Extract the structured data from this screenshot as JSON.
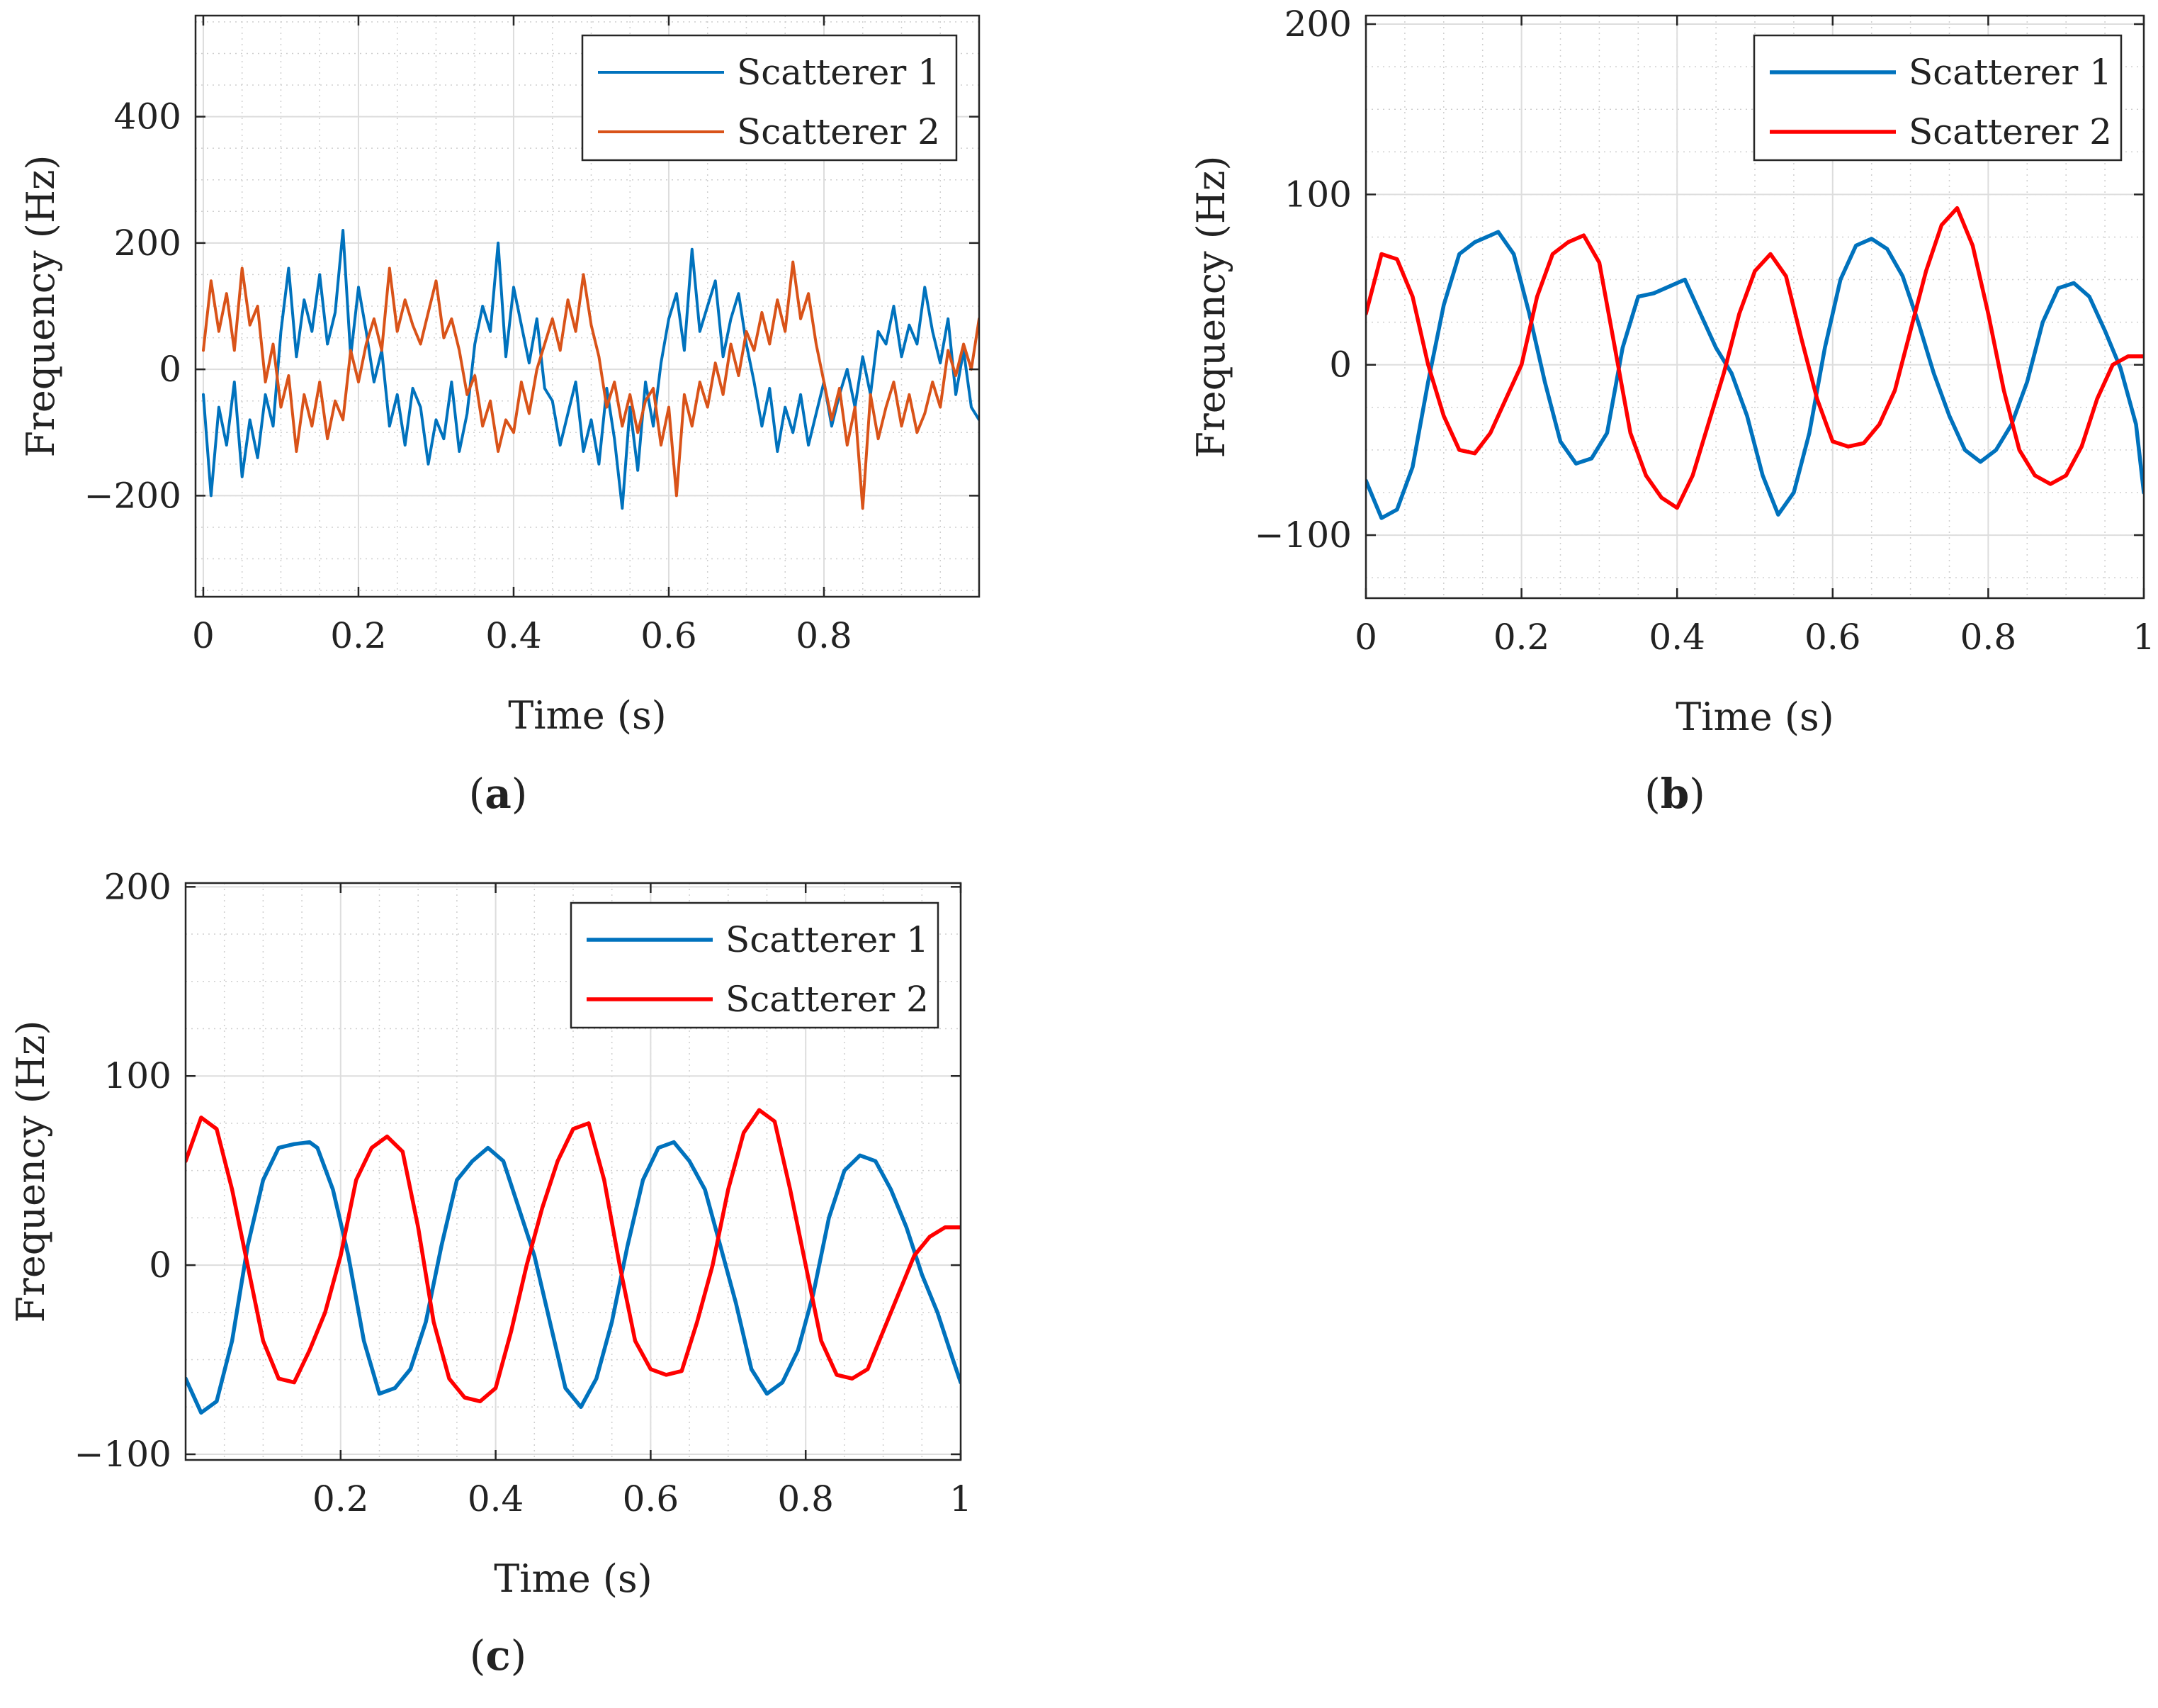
{
  "figure": {
    "panel_labels": [
      "(a)",
      "(b)",
      "(c)"
    ]
  },
  "chart_data": [
    {
      "id": "a",
      "type": "line",
      "panel_label": "a",
      "title": "",
      "xlabel": "Time (s)",
      "ylabel": "Frequency (Hz)",
      "xlim": [
        -0.01,
        1.0
      ],
      "ylim": [
        -360,
        560
      ],
      "xticks": [
        0,
        0.2,
        0.4,
        0.6,
        0.8
      ],
      "xtick_labels": [
        "0",
        "0.2",
        "0.4",
        "0.6",
        "0.8"
      ],
      "yticks": [
        -200,
        0,
        200,
        400
      ],
      "ytick_labels": [
        "−200",
        "0",
        "200",
        "400"
      ],
      "grid": true,
      "minor_grid": true,
      "legend_position": "top-right",
      "series": [
        {
          "name": "Scatterer 1",
          "color": "#0072BD",
          "x": [
            0.0,
            0.01,
            0.02,
            0.03,
            0.04,
            0.05,
            0.06,
            0.07,
            0.08,
            0.09,
            0.1,
            0.11,
            0.12,
            0.13,
            0.14,
            0.15,
            0.16,
            0.17,
            0.18,
            0.19,
            0.2,
            0.21,
            0.22,
            0.23,
            0.24,
            0.25,
            0.26,
            0.27,
            0.28,
            0.29,
            0.3,
            0.31,
            0.32,
            0.33,
            0.34,
            0.35,
            0.36,
            0.37,
            0.38,
            0.39,
            0.4,
            0.41,
            0.42,
            0.43,
            0.44,
            0.45,
            0.46,
            0.47,
            0.48,
            0.49,
            0.5,
            0.51,
            0.52,
            0.53,
            0.54,
            0.55,
            0.56,
            0.57,
            0.58,
            0.59,
            0.6,
            0.61,
            0.62,
            0.63,
            0.64,
            0.65,
            0.66,
            0.67,
            0.68,
            0.69,
            0.7,
            0.71,
            0.72,
            0.73,
            0.74,
            0.75,
            0.76,
            0.77,
            0.78,
            0.79,
            0.8,
            0.81,
            0.82,
            0.83,
            0.84,
            0.85,
            0.86,
            0.87,
            0.88,
            0.89,
            0.9,
            0.91,
            0.92,
            0.93,
            0.94,
            0.95,
            0.96,
            0.97,
            0.98,
            0.99,
            1.0
          ],
          "y": [
            -40,
            -200,
            -60,
            -120,
            -20,
            -170,
            -80,
            -140,
            -40,
            -90,
            60,
            160,
            20,
            110,
            60,
            150,
            40,
            90,
            220,
            20,
            130,
            60,
            -20,
            30,
            -90,
            -40,
            -120,
            -30,
            -60,
            -150,
            -80,
            -110,
            -20,
            -130,
            -70,
            40,
            100,
            60,
            200,
            20,
            130,
            70,
            10,
            80,
            -30,
            -50,
            -120,
            -70,
            -20,
            -130,
            -80,
            -150,
            -30,
            -110,
            -220,
            -60,
            -160,
            -20,
            -90,
            10,
            80,
            120,
            30,
            190,
            60,
            100,
            140,
            20,
            80,
            120,
            40,
            -20,
            -90,
            -30,
            -130,
            -60,
            -100,
            -40,
            -120,
            -70,
            -20,
            -90,
            -40,
            0,
            -60,
            20,
            -40,
            60,
            40,
            100,
            20,
            70,
            40,
            130,
            60,
            10,
            80,
            -40,
            30,
            -60,
            -80
          ]
        },
        {
          "name": "Scatterer 2",
          "color": "#D95319",
          "x": [
            0.0,
            0.01,
            0.02,
            0.03,
            0.04,
            0.05,
            0.06,
            0.07,
            0.08,
            0.09,
            0.1,
            0.11,
            0.12,
            0.13,
            0.14,
            0.15,
            0.16,
            0.17,
            0.18,
            0.19,
            0.2,
            0.21,
            0.22,
            0.23,
            0.24,
            0.25,
            0.26,
            0.27,
            0.28,
            0.29,
            0.3,
            0.31,
            0.32,
            0.33,
            0.34,
            0.35,
            0.36,
            0.37,
            0.38,
            0.39,
            0.4,
            0.41,
            0.42,
            0.43,
            0.44,
            0.45,
            0.46,
            0.47,
            0.48,
            0.49,
            0.5,
            0.51,
            0.52,
            0.53,
            0.54,
            0.55,
            0.56,
            0.57,
            0.58,
            0.59,
            0.6,
            0.61,
            0.62,
            0.63,
            0.64,
            0.65,
            0.66,
            0.67,
            0.68,
            0.69,
            0.7,
            0.71,
            0.72,
            0.73,
            0.74,
            0.75,
            0.76,
            0.77,
            0.78,
            0.79,
            0.8,
            0.81,
            0.82,
            0.83,
            0.84,
            0.85,
            0.86,
            0.87,
            0.88,
            0.89,
            0.9,
            0.91,
            0.92,
            0.93,
            0.94,
            0.95,
            0.96,
            0.97,
            0.98,
            0.99,
            1.0
          ],
          "y": [
            30,
            140,
            60,
            120,
            30,
            160,
            70,
            100,
            -20,
            40,
            -60,
            -10,
            -130,
            -40,
            -90,
            -20,
            -110,
            -50,
            -80,
            30,
            -20,
            40,
            80,
            30,
            160,
            60,
            110,
            70,
            40,
            90,
            140,
            50,
            80,
            30,
            -40,
            -10,
            -90,
            -50,
            -130,
            -80,
            -100,
            -20,
            -70,
            0,
            40,
            80,
            30,
            110,
            60,
            150,
            70,
            20,
            -60,
            -20,
            -90,
            -40,
            -100,
            -50,
            -30,
            -120,
            -60,
            -200,
            -40,
            -90,
            -20,
            -60,
            10,
            -40,
            40,
            -10,
            60,
            30,
            90,
            40,
            110,
            60,
            170,
            80,
            120,
            40,
            -20,
            -80,
            -30,
            -120,
            -60,
            -220,
            -40,
            -110,
            -60,
            -20,
            -90,
            -40,
            -100,
            -70,
            -20,
            -60,
            30,
            -10,
            40,
            0,
            80
          ]
        }
      ]
    },
    {
      "id": "b",
      "type": "line",
      "panel_label": "b",
      "title": "",
      "xlabel": "Time (s)",
      "ylabel": "Frequency (Hz)",
      "xlim": [
        0,
        1
      ],
      "ylim": [
        -137,
        205
      ],
      "xticks": [
        0,
        0.2,
        0.4,
        0.6,
        0.8,
        1
      ],
      "xtick_labels": [
        "0",
        "0.2",
        "0.4",
        "0.6",
        "0.8",
        "1"
      ],
      "yticks": [
        -100,
        0,
        100,
        200
      ],
      "ytick_labels": [
        "−100",
        "0",
        "100",
        "200"
      ],
      "grid": true,
      "minor_grid": true,
      "legend_position": "top-right",
      "series": [
        {
          "name": "Scatterer 1",
          "color": "#0072BD",
          "x": [
            0.0,
            0.02,
            0.04,
            0.06,
            0.08,
            0.1,
            0.12,
            0.14,
            0.16,
            0.17,
            0.19,
            0.21,
            0.23,
            0.25,
            0.27,
            0.29,
            0.31,
            0.33,
            0.35,
            0.37,
            0.39,
            0.41,
            0.43,
            0.45,
            0.47,
            0.49,
            0.51,
            0.53,
            0.55,
            0.57,
            0.59,
            0.61,
            0.63,
            0.65,
            0.67,
            0.69,
            0.71,
            0.73,
            0.75,
            0.77,
            0.79,
            0.81,
            0.83,
            0.85,
            0.87,
            0.89,
            0.91,
            0.93,
            0.95,
            0.97,
            0.99,
            1.0
          ],
          "y": [
            -68,
            -90,
            -85,
            -60,
            -10,
            35,
            65,
            72,
            76,
            78,
            65,
            30,
            -10,
            -45,
            -58,
            -55,
            -40,
            10,
            40,
            42,
            46,
            50,
            30,
            10,
            -5,
            -30,
            -65,
            -88,
            -75,
            -40,
            10,
            50,
            70,
            74,
            68,
            52,
            25,
            -5,
            -30,
            -50,
            -57,
            -50,
            -35,
            -10,
            25,
            45,
            48,
            40,
            20,
            -2,
            -35,
            -75
          ]
        },
        {
          "name": "Scatterer 2",
          "color": "#FF0000",
          "x": [
            0.0,
            0.02,
            0.04,
            0.06,
            0.08,
            0.1,
            0.12,
            0.14,
            0.16,
            0.18,
            0.2,
            0.22,
            0.24,
            0.26,
            0.28,
            0.3,
            0.32,
            0.34,
            0.36,
            0.38,
            0.4,
            0.42,
            0.44,
            0.46,
            0.48,
            0.5,
            0.52,
            0.54,
            0.56,
            0.58,
            0.6,
            0.62,
            0.64,
            0.66,
            0.68,
            0.7,
            0.72,
            0.74,
            0.76,
            0.78,
            0.8,
            0.82,
            0.84,
            0.86,
            0.88,
            0.9,
            0.92,
            0.94,
            0.96,
            0.98,
            1.0
          ],
          "y": [
            30,
            65,
            62,
            40,
            0,
            -30,
            -50,
            -52,
            -40,
            -20,
            0,
            40,
            65,
            72,
            76,
            60,
            10,
            -40,
            -65,
            -78,
            -84,
            -65,
            -35,
            -5,
            30,
            55,
            65,
            52,
            15,
            -20,
            -45,
            -48,
            -46,
            -35,
            -15,
            20,
            55,
            82,
            92,
            70,
            30,
            -15,
            -50,
            -65,
            -70,
            -65,
            -48,
            -20,
            0,
            5,
            5
          ]
        }
      ]
    },
    {
      "id": "c",
      "type": "line",
      "panel_label": "c",
      "title": "",
      "xlabel": "Time (s)",
      "ylabel": "Frequency (Hz)",
      "xlim": [
        0,
        1
      ],
      "ylim": [
        -103,
        202
      ],
      "xticks": [
        0.2,
        0.4,
        0.6,
        0.8,
        1
      ],
      "xtick_labels": [
        "0.2",
        "0.4",
        "0.6",
        "0.8",
        "1"
      ],
      "yticks": [
        -100,
        0,
        100,
        200
      ],
      "ytick_labels": [
        "−100",
        "0",
        "100",
        "200"
      ],
      "grid": true,
      "minor_grid": true,
      "legend_position": "top-right",
      "series": [
        {
          "name": "Scatterer 1",
          "color": "#0072BD",
          "x": [
            0.0,
            0.02,
            0.04,
            0.06,
            0.08,
            0.1,
            0.12,
            0.14,
            0.16,
            0.17,
            0.19,
            0.21,
            0.23,
            0.25,
            0.27,
            0.29,
            0.31,
            0.33,
            0.35,
            0.37,
            0.39,
            0.41,
            0.43,
            0.45,
            0.47,
            0.49,
            0.51,
            0.53,
            0.55,
            0.57,
            0.59,
            0.61,
            0.63,
            0.65,
            0.67,
            0.69,
            0.71,
            0.73,
            0.75,
            0.77,
            0.79,
            0.81,
            0.83,
            0.85,
            0.87,
            0.89,
            0.91,
            0.93,
            0.95,
            0.97,
            0.99,
            1.0
          ],
          "y": [
            -60,
            -78,
            -72,
            -40,
            10,
            45,
            62,
            64,
            65,
            62,
            40,
            5,
            -40,
            -68,
            -65,
            -55,
            -30,
            10,
            45,
            55,
            62,
            55,
            30,
            5,
            -30,
            -65,
            -75,
            -60,
            -30,
            10,
            45,
            62,
            65,
            55,
            40,
            10,
            -20,
            -55,
            -68,
            -62,
            -45,
            -15,
            25,
            50,
            58,
            55,
            40,
            20,
            -5,
            -25,
            -50,
            -62
          ]
        },
        {
          "name": "Scatterer 2",
          "color": "#FF0000",
          "x": [
            0.0,
            0.02,
            0.04,
            0.06,
            0.08,
            0.1,
            0.12,
            0.14,
            0.16,
            0.18,
            0.2,
            0.22,
            0.24,
            0.26,
            0.28,
            0.3,
            0.32,
            0.34,
            0.36,
            0.38,
            0.4,
            0.42,
            0.44,
            0.46,
            0.48,
            0.5,
            0.52,
            0.54,
            0.56,
            0.58,
            0.6,
            0.62,
            0.64,
            0.66,
            0.68,
            0.7,
            0.72,
            0.74,
            0.76,
            0.78,
            0.8,
            0.82,
            0.84,
            0.86,
            0.88,
            0.9,
            0.92,
            0.94,
            0.96,
            0.98,
            1.0
          ],
          "y": [
            55,
            78,
            72,
            40,
            0,
            -40,
            -60,
            -62,
            -45,
            -25,
            5,
            45,
            62,
            68,
            60,
            20,
            -30,
            -60,
            -70,
            -72,
            -65,
            -35,
            0,
            30,
            55,
            72,
            75,
            45,
            0,
            -40,
            -55,
            -58,
            -56,
            -30,
            0,
            40,
            70,
            82,
            76,
            40,
            0,
            -40,
            -58,
            -60,
            -55,
            -35,
            -15,
            5,
            15,
            20,
            20
          ]
        }
      ]
    }
  ]
}
